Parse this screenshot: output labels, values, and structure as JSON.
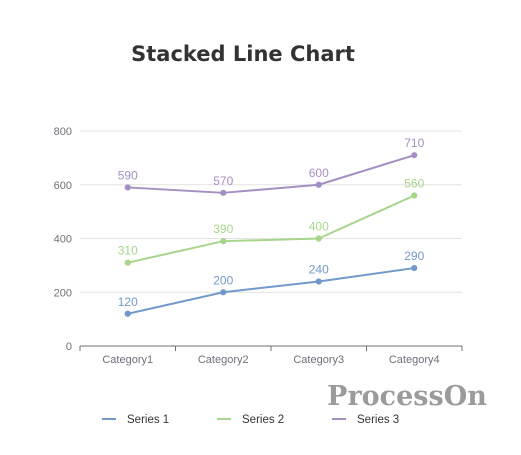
{
  "watermark": "ProcessOn",
  "chart_data": {
    "type": "line",
    "title": "Stacked Line Chart",
    "xlabel": "",
    "ylabel": "",
    "categories": [
      "Category1",
      "Category2",
      "Category3",
      "Category4"
    ],
    "ylim": [
      0,
      800
    ],
    "yticks": [
      0,
      200,
      400,
      600,
      800
    ],
    "grid": true,
    "legend_position": "bottom",
    "series": [
      {
        "name": "Series 1",
        "values": [
          120,
          200,
          240,
          290
        ],
        "color": "#7399cc"
      },
      {
        "name": "Series 2",
        "values": [
          310,
          390,
          400,
          560
        ],
        "color": "#a7d58b"
      },
      {
        "name": "Series 3",
        "values": [
          590,
          570,
          600,
          710
        ],
        "color": "#a58fc2"
      }
    ]
  }
}
